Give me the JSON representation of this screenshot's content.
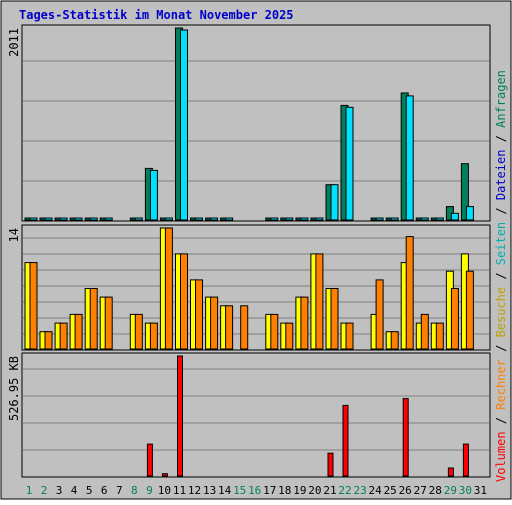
{
  "title": "Tages-Statistik im Monat November 2025",
  "colors": {
    "frame": "#000000",
    "plot_bg": "#c0c0c0",
    "grid": "#808080",
    "title": "#0000cc",
    "hits": "#00805c",
    "files": "#00e0ff",
    "sites": "#00e0e0",
    "visits": "#ffff00",
    "pages": "#ff8000",
    "kbytes": "#ff0000",
    "day_normal": "#000000",
    "day_weekend": "#00805c"
  },
  "legend": {
    "top": [
      {
        "text": "Anfragen",
        "color": "#00805c"
      },
      {
        "text": " / ",
        "color": "#000000"
      },
      {
        "text": "Dateien",
        "color": "#0000cc"
      },
      {
        "text": " / ",
        "color": "#000000"
      },
      {
        "text": "Seiten",
        "color": "#00b0b0"
      },
      {
        "text": " / ",
        "color": "#000000"
      },
      {
        "text": "Besuche",
        "color": "#c0a000"
      }
    ],
    "bottom": [
      {
        "text": " / ",
        "color": "#000000"
      },
      {
        "text": "Rechner",
        "color": "#ff8000"
      },
      {
        "text": " / ",
        "color": "#000000"
      },
      {
        "text": "Volumen",
        "color": "#ff0000"
      }
    ]
  },
  "chart_data": [
    {
      "type": "bar",
      "panel": "hits-files",
      "ymax_label": "2011",
      "ylim": [
        0,
        2011
      ],
      "categories": [
        "1",
        "2",
        "3",
        "4",
        "5",
        "6",
        "7",
        "8",
        "9",
        "10",
        "11",
        "12",
        "13",
        "14",
        "15",
        "16",
        "17",
        "18",
        "19",
        "20",
        "21",
        "22",
        "23",
        "24",
        "25",
        "26",
        "27",
        "28",
        "29",
        "30",
        "31"
      ],
      "weekend": [
        "1",
        "2",
        "8",
        "9",
        "15",
        "16",
        "22",
        "23",
        "29",
        "30"
      ],
      "series": [
        {
          "key": "hits",
          "values": [
            20,
            10,
            10,
            10,
            10,
            10,
            0,
            10,
            540,
            20,
            2011,
            10,
            10,
            10,
            0,
            0,
            10,
            10,
            20,
            20,
            370,
            1200,
            0,
            10,
            10,
            1330,
            10,
            10,
            140,
            590,
            0
          ]
        },
        {
          "key": "files",
          "values": [
            20,
            10,
            10,
            10,
            10,
            10,
            0,
            10,
            520,
            20,
            1990,
            10,
            10,
            10,
            0,
            0,
            10,
            10,
            20,
            20,
            370,
            1180,
            0,
            10,
            10,
            1300,
            10,
            10,
            70,
            140,
            0
          ]
        }
      ]
    },
    {
      "type": "bar",
      "panel": "visits-hosts",
      "ymax_label": "14",
      "ylim": [
        0,
        14
      ],
      "categories": [
        "1",
        "2",
        "3",
        "4",
        "5",
        "6",
        "7",
        "8",
        "9",
        "10",
        "11",
        "12",
        "13",
        "14",
        "15",
        "16",
        "17",
        "18",
        "19",
        "20",
        "21",
        "22",
        "23",
        "24",
        "25",
        "26",
        "27",
        "28",
        "29",
        "30",
        "31"
      ],
      "weekend": [
        "1",
        "2",
        "8",
        "9",
        "15",
        "16",
        "22",
        "23",
        "29",
        "30"
      ],
      "series": [
        {
          "key": "visits",
          "values": [
            10,
            2,
            3,
            4,
            7,
            6,
            0,
            4,
            3,
            14,
            11,
            8,
            6,
            5,
            0,
            0,
            4,
            3,
            6,
            11,
            7,
            3,
            0,
            4,
            2,
            10,
            3,
            3,
            9,
            11,
            0
          ]
        },
        {
          "key": "pages",
          "values": [
            10,
            2,
            3,
            4,
            7,
            6,
            0,
            4,
            3,
            14,
            11,
            8,
            6,
            5,
            5,
            0,
            4,
            3,
            6,
            11,
            7,
            3,
            0,
            8,
            2,
            13,
            4,
            3,
            7,
            9,
            0
          ]
        }
      ]
    },
    {
      "type": "bar",
      "panel": "kbytes",
      "ymax_label": "526.95 KB",
      "ylim": [
        0,
        526.95
      ],
      "categories": [
        "1",
        "2",
        "3",
        "4",
        "5",
        "6",
        "7",
        "8",
        "9",
        "10",
        "11",
        "12",
        "13",
        "14",
        "15",
        "16",
        "17",
        "18",
        "19",
        "20",
        "21",
        "22",
        "23",
        "24",
        "25",
        "26",
        "27",
        "28",
        "29",
        "30",
        "31"
      ],
      "weekend": [
        "1",
        "2",
        "8",
        "9",
        "15",
        "16",
        "22",
        "23",
        "29",
        "30"
      ],
      "series": [
        {
          "key": "kbytes",
          "values": [
            0,
            0,
            0,
            0,
            0,
            0,
            0,
            0,
            140,
            10,
            526.95,
            0,
            0,
            0,
            0,
            0,
            0,
            0,
            0,
            0,
            100,
            310,
            0,
            0,
            0,
            340,
            0,
            0,
            35,
            140,
            0
          ]
        }
      ]
    }
  ]
}
